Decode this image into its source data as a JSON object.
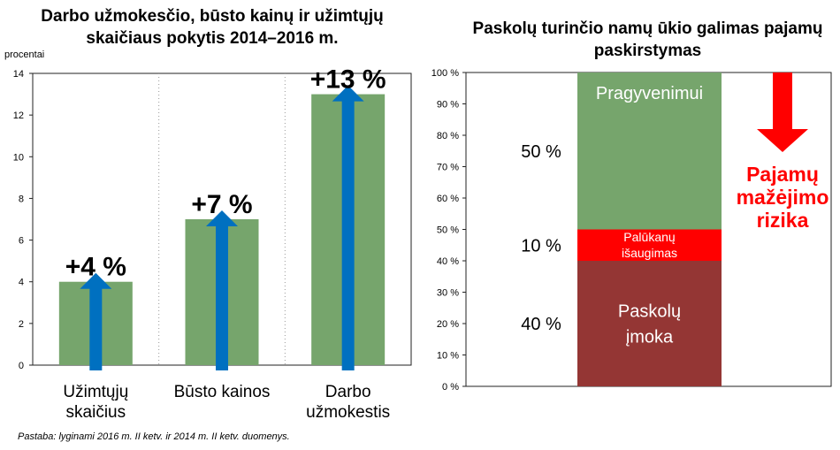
{
  "left_title": "Darbo užmokesčio, būsto kainų ir užimtųjų skaičiaus pokytis 2014–2016 m.",
  "unit_label": "procentai",
  "note": "Pastaba: lyginami 2016 m. II ketv. ir 2014 m. II ketv. duomenys.",
  "right_title": "Paskolų turinčio namų ūkio galimas pajamų paskirstymas",
  "risk_label": "Pajamų mažėjimo rizika",
  "chart_data": [
    {
      "type": "bar",
      "title": "Darbo užmokesčio, būsto kainų ir užimtųjų skaičiaus pokytis 2014–2016 m.",
      "ylabel": "procentai",
      "ylim": [
        0,
        14
      ],
      "yticks": [
        "0",
        "2",
        "4",
        "6",
        "8",
        "10",
        "12",
        "14"
      ],
      "categories": [
        "Užimtųjų skaičius",
        "Būsto kainos",
        "Darbo užmokestis"
      ],
      "values": [
        4,
        7,
        13
      ],
      "data_labels": [
        "+4 %",
        "+7 %",
        "+13 %"
      ],
      "bar_color": "#76a56c",
      "arrow_color": "#0070c0",
      "grid": "vertical dotted separators"
    },
    {
      "type": "bar",
      "stacked": true,
      "title": "Paskolų turinčio namų ūkio galimas pajamų paskirstymas",
      "ylim": [
        0,
        100
      ],
      "yticks": [
        "0 %",
        "10 %",
        "20 %",
        "30 %",
        "40 %",
        "50 %",
        "60 %",
        "70 %",
        "80 %",
        "90 %",
        "100 %"
      ],
      "segments": [
        {
          "label": "Paskolų įmoka",
          "value": 40,
          "value_label": "40 %",
          "color": "#943634"
        },
        {
          "label": "Palūkanų išaugimas",
          "value": 10,
          "value_label": "10 %",
          "color": "#ff0000"
        },
        {
          "label": "Pragyvenimui",
          "value": 50,
          "value_label": "50 %",
          "color": "#76a56c"
        }
      ],
      "annotation_arrow": {
        "direction": "down",
        "color": "#ff0000"
      }
    }
  ]
}
